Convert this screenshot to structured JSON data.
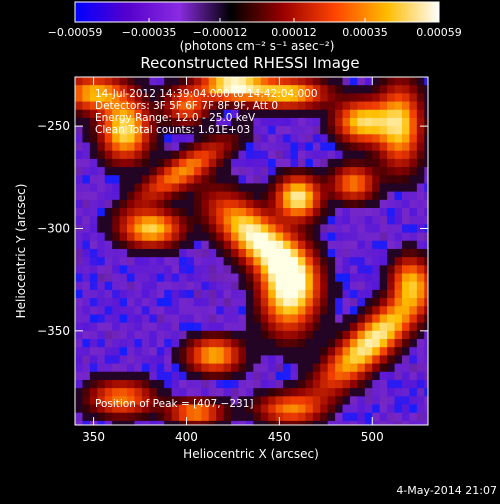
{
  "chart_data": {
    "type": "heatmap",
    "title": "Reconstructed RHESSI Image",
    "xlabel": "Heliocentric X (arcsec)",
    "ylabel": "Heliocentric Y (arcsec)",
    "xlim": [
      340,
      530
    ],
    "ylim": [
      -396,
      -226
    ],
    "xticks": [
      {
        "value": 350,
        "label": "350"
      },
      {
        "value": 400,
        "label": "400"
      },
      {
        "value": 450,
        "label": "450"
      },
      {
        "value": 500,
        "label": "500"
      }
    ],
    "yticks": [
      {
        "value": -250,
        "label": "−250"
      },
      {
        "value": -300,
        "label": "−300"
      },
      {
        "value": -350,
        "label": "−350"
      }
    ],
    "colorbar": {
      "min": -0.00059,
      "max": 0.00059,
      "ticks": [
        {
          "value": -0.00059,
          "label": "−0.00059"
        },
        {
          "value": -0.00035,
          "label": "−0.00035"
        },
        {
          "value": -0.00012,
          "label": "−0.00012"
        },
        {
          "value": 0.00012,
          "label": "0.00012"
        },
        {
          "value": 0.00035,
          "label": "0.00035"
        },
        {
          "value": 0.00059,
          "label": "0.00059"
        }
      ],
      "unit_label": "(photons cm⁻² s⁻¹ asec⁻²)",
      "colors": [
        "#0000ff",
        "#5500cc",
        "#8a2be2",
        "#000000",
        "#990000",
        "#ff4400",
        "#ffbb00",
        "#ffffff"
      ]
    },
    "annotations": [
      "14-Jul-2012 14:39:04.000 to 14:42:04.000",
      "Detectors: 3F 5F 6F 7F 8F 9F, Att 0",
      "Energy Range: 12.0 - 25.0 keV",
      "Clean    Total counts: 1.61E+03"
    ],
    "peak": {
      "x": 407,
      "y": -231,
      "label": "Position of Peak = [407,−231]"
    },
    "sources": [
      {
        "x": 350,
        "y": -234,
        "sx": 12,
        "sy": 6,
        "amp": 0.7,
        "rot": 0
      },
      {
        "x": 367,
        "y": -252,
        "sx": 9,
        "sy": 10,
        "amp": 0.85,
        "rot": 0
      },
      {
        "x": 400,
        "y": -240,
        "sx": 8,
        "sy": 6,
        "amp": 0.55,
        "rot": 0
      },
      {
        "x": 425,
        "y": -230,
        "sx": 12,
        "sy": 5,
        "amp": 0.95,
        "rot": 0
      },
      {
        "x": 455,
        "y": -234,
        "sx": 14,
        "sy": 5,
        "amp": 0.75,
        "rot": 0
      },
      {
        "x": 495,
        "y": -248,
        "sx": 10,
        "sy": 7,
        "amp": 0.8,
        "rot": 0
      },
      {
        "x": 515,
        "y": -250,
        "sx": 8,
        "sy": 14,
        "amp": 0.75,
        "rot": 0
      },
      {
        "x": 398,
        "y": -272,
        "sx": 20,
        "sy": 5,
        "amp": 0.6,
        "rot": 30
      },
      {
        "x": 381,
        "y": -300,
        "sx": 11,
        "sy": 6,
        "amp": 0.8,
        "rot": 0
      },
      {
        "x": 438,
        "y": -305,
        "sx": 20,
        "sy": 8,
        "amp": 0.95,
        "rot": -38
      },
      {
        "x": 460,
        "y": -285,
        "sx": 8,
        "sy": 7,
        "amp": 0.9,
        "rot": 0
      },
      {
        "x": 490,
        "y": -278,
        "sx": 8,
        "sy": 6,
        "amp": 0.6,
        "rot": 0
      },
      {
        "x": 455,
        "y": -330,
        "sx": 10,
        "sy": 14,
        "amp": 0.95,
        "rot": 0
      },
      {
        "x": 500,
        "y": -355,
        "sx": 25,
        "sy": 7,
        "amp": 0.9,
        "rot": 40
      },
      {
        "x": 520,
        "y": -325,
        "sx": 7,
        "sy": 8,
        "amp": 0.6,
        "rot": 0
      },
      {
        "x": 415,
        "y": -362,
        "sx": 10,
        "sy": 6,
        "amp": 0.7,
        "rot": 0
      },
      {
        "x": 365,
        "y": -383,
        "sx": 12,
        "sy": 6,
        "amp": 0.6,
        "rot": 0
      },
      {
        "x": 405,
        "y": -390,
        "sx": 10,
        "sy": 4,
        "amp": 0.65,
        "rot": 0
      },
      {
        "x": 455,
        "y": -388,
        "sx": 12,
        "sy": 5,
        "amp": 0.55,
        "rot": 0
      }
    ]
  },
  "footer": {
    "timestamp": "4-May-2014 21:07"
  }
}
